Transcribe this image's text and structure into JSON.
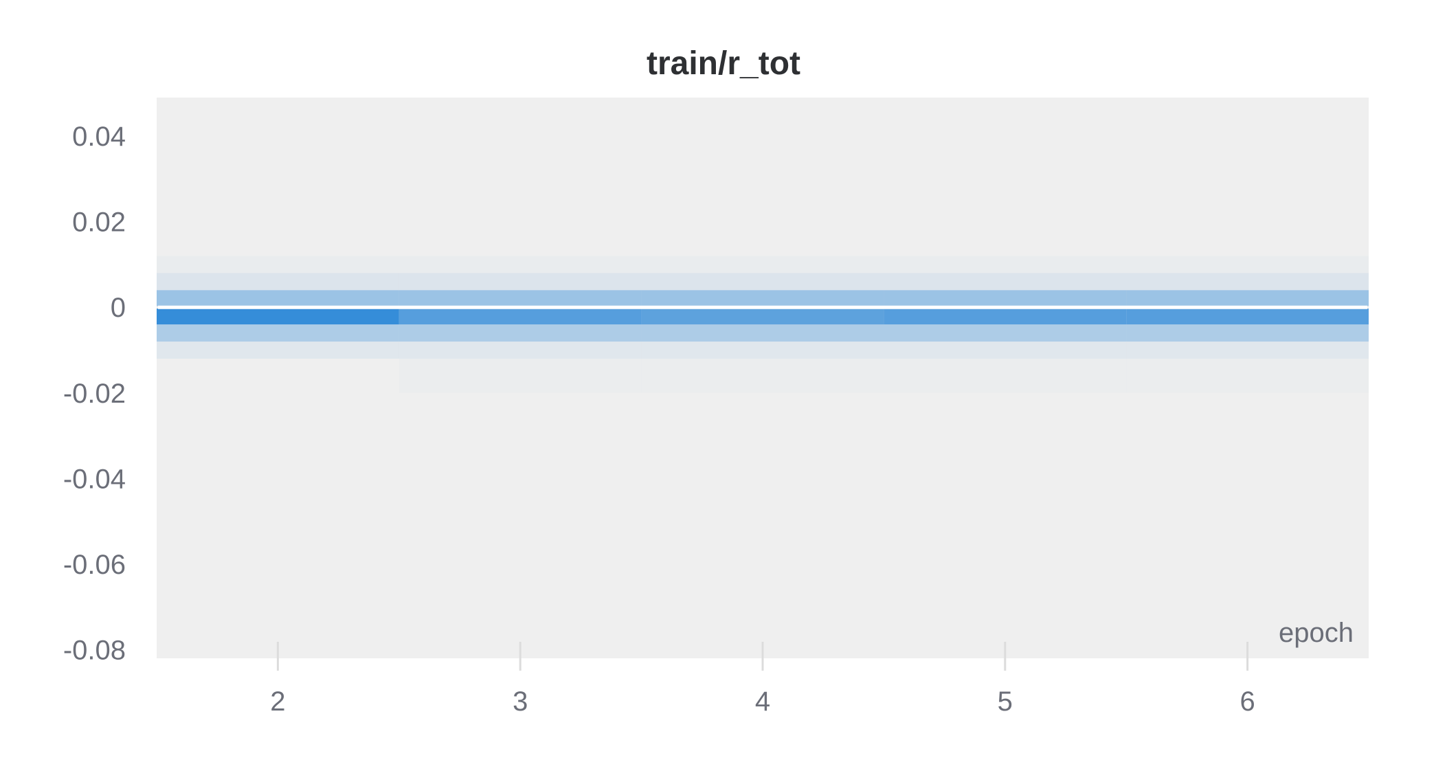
{
  "chart_data": {
    "type": "heatmap",
    "title": "train/r_tot",
    "xlabel": "epoch",
    "ylabel": "",
    "x_ticks": [
      2,
      3,
      4,
      5,
      6
    ],
    "y_ticks": [
      0.04,
      0.02,
      0,
      -0.02,
      -0.04,
      -0.06,
      -0.08
    ],
    "y_tick_labels": [
      "0.04",
      "0.02",
      "0",
      "-0.02",
      "-0.04",
      "-0.06",
      "-0.08"
    ],
    "xlim": [
      1.5,
      6.5
    ],
    "ylim": [
      -0.082,
      0.049
    ],
    "grid": false,
    "colors": {
      "background": "#efefef",
      "cell": "#2e89d8",
      "center_line": "#ffffff"
    },
    "bins": [
      [
        0.012,
        0.008
      ],
      [
        0.008,
        0.004
      ],
      [
        0.004,
        0.0003
      ],
      [
        -0.0003,
        -0.004
      ],
      [
        -0.004,
        -0.008
      ],
      [
        -0.008,
        -0.012
      ],
      [
        -0.012,
        -0.02
      ]
    ],
    "cells": [
      {
        "x": 2,
        "intensities": [
          0.03,
          0.1,
          0.45,
          1.0,
          0.35,
          0.08,
          0.0
        ]
      },
      {
        "x": 3,
        "intensities": [
          0.03,
          0.1,
          0.45,
          0.82,
          0.35,
          0.08,
          0.02
        ]
      },
      {
        "x": 4,
        "intensities": [
          0.03,
          0.1,
          0.45,
          0.78,
          0.35,
          0.08,
          0.02
        ]
      },
      {
        "x": 5,
        "intensities": [
          0.03,
          0.1,
          0.45,
          0.82,
          0.35,
          0.08,
          0.02
        ]
      },
      {
        "x": 6,
        "intensities": [
          0.03,
          0.1,
          0.45,
          0.82,
          0.35,
          0.08,
          0.02
        ]
      }
    ],
    "center_line_y": 0
  }
}
